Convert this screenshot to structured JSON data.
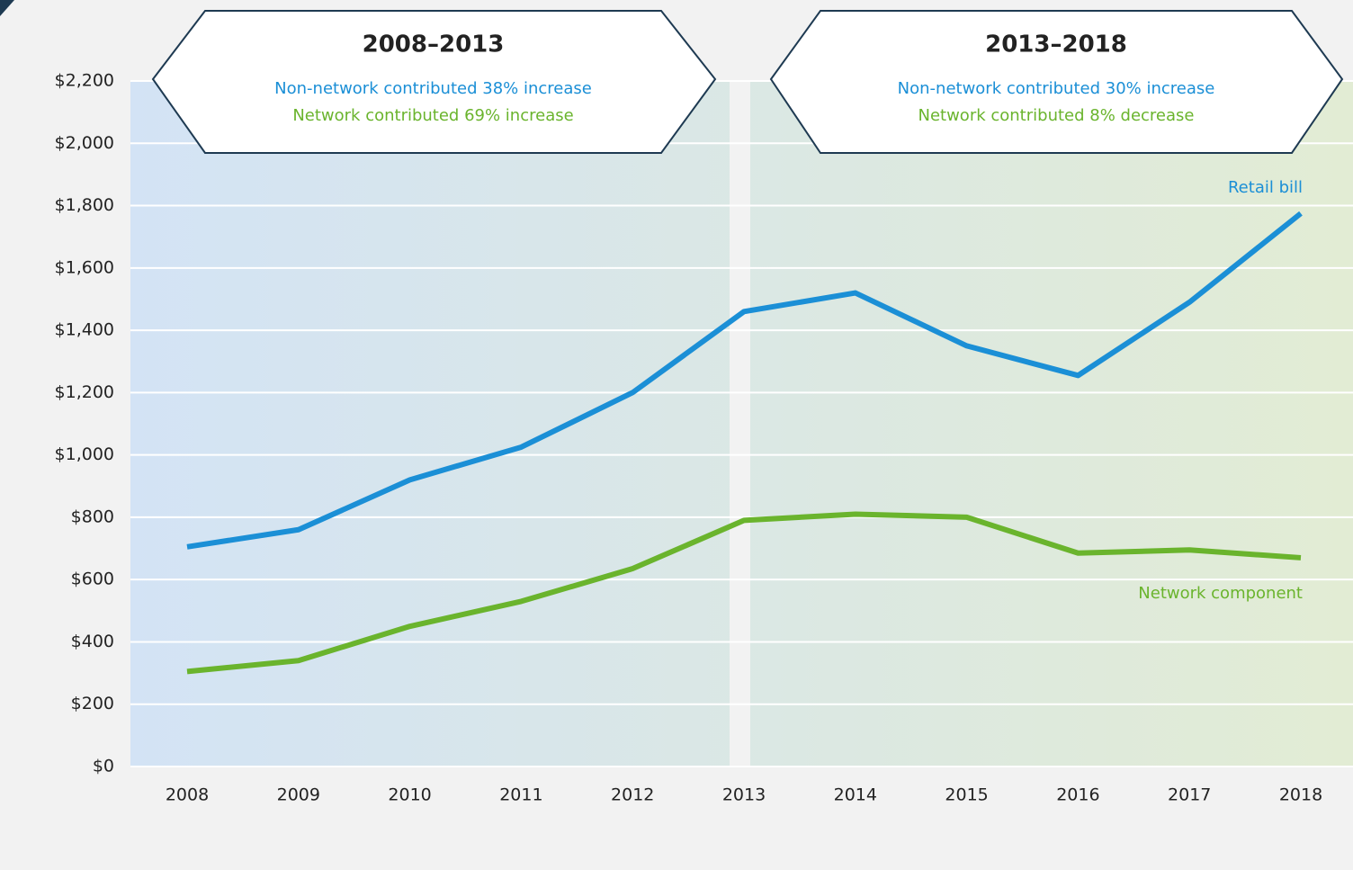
{
  "chart_data": {
    "type": "line",
    "categories": [
      "2008",
      "2009",
      "2010",
      "2011",
      "2012",
      "2013",
      "2014",
      "2015",
      "2016",
      "2017",
      "2018"
    ],
    "series": [
      {
        "name": "Retail bill",
        "color": "#1b8fd6",
        "values": [
          705,
          760,
          920,
          1025,
          1200,
          1460,
          1520,
          1350,
          1255,
          1490,
          1775
        ]
      },
      {
        "name": "Network component",
        "color": "#6ab42d",
        "values": [
          305,
          340,
          450,
          530,
          635,
          790,
          810,
          800,
          685,
          695,
          670
        ]
      }
    ],
    "ylim": [
      0,
      2200
    ],
    "yticks": [
      {
        "value": 0,
        "label": "$0"
      },
      {
        "value": 200,
        "label": "$200"
      },
      {
        "value": 400,
        "label": "$400"
      },
      {
        "value": 600,
        "label": "$600"
      },
      {
        "value": 800,
        "label": "$800"
      },
      {
        "value": 1000,
        "label": "$1,000"
      },
      {
        "value": 1200,
        "label": "$1,200"
      },
      {
        "value": 1400,
        "label": "$1,400"
      },
      {
        "value": 1600,
        "label": "$1,600"
      },
      {
        "value": 1800,
        "label": "$1,800"
      },
      {
        "value": 2000,
        "label": "$2,000"
      },
      {
        "value": 2200,
        "label": "$2,200"
      }
    ],
    "grid": true,
    "annotations": [
      {
        "title": "2008–2013",
        "lines": [
          "Non-network contributed 38% increase",
          "Network contributed 69% increase"
        ]
      },
      {
        "title": "2013–2018",
        "lines": [
          "Non-network contributed 30% increase",
          "Network contributed 8% decrease"
        ]
      }
    ]
  }
}
